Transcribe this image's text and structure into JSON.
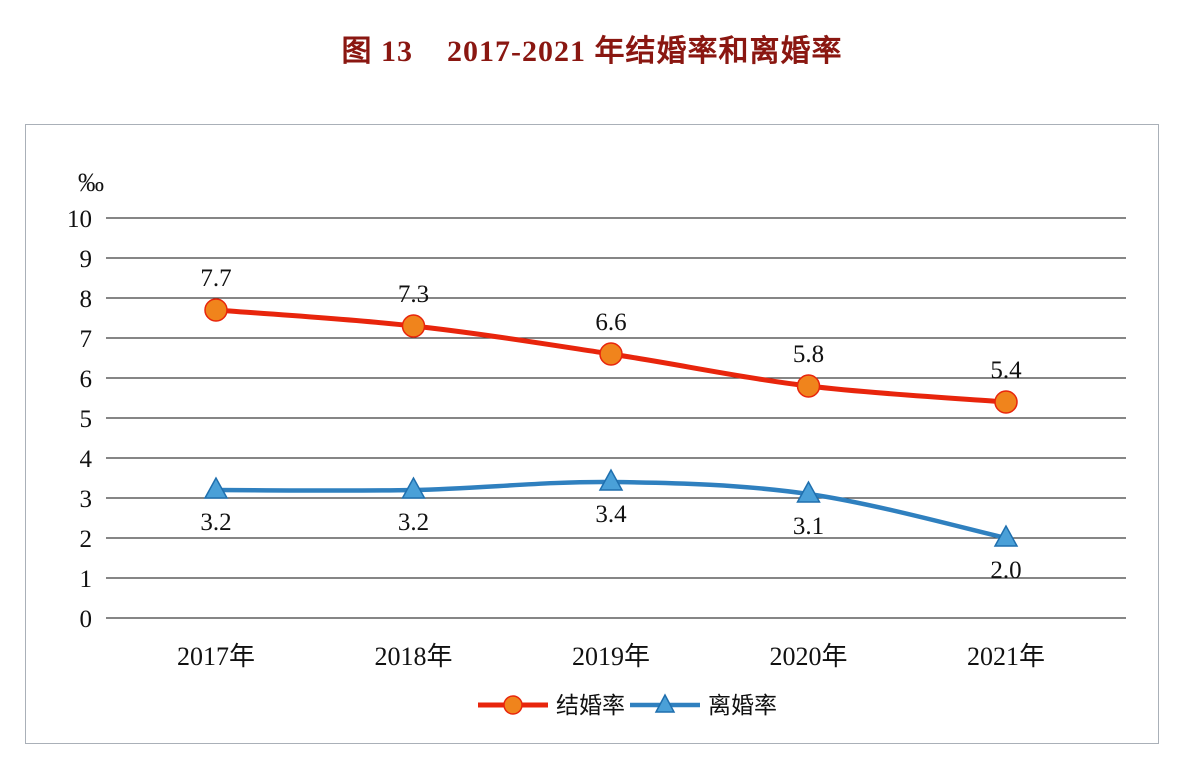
{
  "title": "图 13    2017-2021 年结婚率和离婚率",
  "colors": {
    "title": "#8a1711",
    "text": "#111111",
    "grid": "#3f3f3f",
    "box_border": "#aab0b8",
    "marriage_line": "#e8250c",
    "marriage_marker": "#f0841c",
    "divorce_line": "#2f80bf",
    "divorce_marker": "#4aa0d8"
  },
  "chart_data": {
    "type": "line",
    "title": "图 13 2017-2021 年结婚率和离婚率",
    "unit_label": "‰",
    "categories": [
      "2017年",
      "2018年",
      "2019年",
      "2020年",
      "2021年"
    ],
    "series": [
      {
        "name": "结婚率",
        "values": [
          7.7,
          7.3,
          6.6,
          5.8,
          5.4
        ],
        "labels": [
          "7.7",
          "7.3",
          "6.6",
          "5.8",
          "5.4"
        ],
        "marker": "circle",
        "label_position": "above"
      },
      {
        "name": "离婚率",
        "values": [
          3.2,
          3.2,
          3.4,
          3.1,
          2.0
        ],
        "labels": [
          "3.2",
          "3.2",
          "3.4",
          "3.1",
          "2.0"
        ],
        "marker": "triangle",
        "label_position": "below"
      }
    ],
    "ylim": [
      0,
      10
    ],
    "yticks": [
      10,
      9,
      8,
      7,
      6,
      5,
      4,
      3,
      2,
      1,
      0
    ],
    "grid": true,
    "legend_position": "bottom",
    "legend": [
      "结婚率",
      "离婚率"
    ]
  }
}
